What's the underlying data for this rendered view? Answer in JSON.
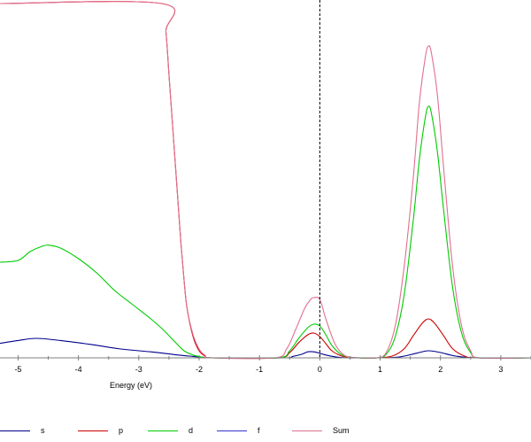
{
  "chart_data": {
    "type": "line",
    "title": "",
    "xlabel": "Energy (eV)",
    "ylabel": "",
    "xlim": [
      -5.3,
      3.5
    ],
    "ylim": [
      0,
      1.0
    ],
    "x_ticks": [
      -5,
      -4,
      -3,
      -2,
      -1,
      0,
      1,
      2,
      3
    ],
    "reference_line_x": 0,
    "grid": false,
    "legend_position": "bottom",
    "series": [
      {
        "name": "s",
        "color": "#00008b",
        "x": [
          -5.3,
          -5.0,
          -4.7,
          -4.3,
          -3.8,
          -3.3,
          -2.8,
          -2.4,
          -2.1,
          -1.9,
          -1.7,
          -0.6,
          -0.45,
          -0.3,
          -0.2,
          -0.1,
          0.0,
          0.1,
          0.25,
          0.45,
          0.6,
          0.95,
          1.3,
          1.6,
          1.8,
          2.0,
          2.25,
          2.6,
          3.5
        ],
        "y": [
          0.041,
          0.049,
          0.055,
          0.049,
          0.038,
          0.025,
          0.017,
          0.009,
          0.004,
          0.001,
          0.0,
          0.0,
          0.004,
          0.01,
          0.017,
          0.017,
          0.013,
          0.008,
          0.003,
          0.0,
          0.0,
          0.0,
          0.002,
          0.013,
          0.02,
          0.015,
          0.005,
          0.0,
          0.0
        ]
      },
      {
        "name": "p",
        "color": "#cc0000",
        "x": [
          -5.3,
          -2.62,
          -2.55,
          -2.5,
          -2.45,
          -2.4,
          -2.35,
          -2.3,
          -2.25,
          -2.2,
          -2.1,
          -2.0,
          -1.9,
          -1.8,
          -0.7,
          -0.5,
          -0.35,
          -0.2,
          -0.1,
          0.0,
          0.1,
          0.2,
          0.35,
          0.5,
          0.65,
          0.95,
          1.2,
          1.4,
          1.55,
          1.7,
          1.8,
          1.9,
          2.05,
          2.2,
          2.4,
          2.6,
          3.5
        ],
        "y": [
          1.0,
          1.0,
          0.92,
          0.8,
          0.68,
          0.56,
          0.44,
          0.32,
          0.22,
          0.14,
          0.06,
          0.02,
          0.005,
          0.0,
          0.0,
          0.015,
          0.043,
          0.065,
          0.07,
          0.06,
          0.04,
          0.02,
          0.006,
          0.001,
          0.0,
          0.0,
          0.005,
          0.026,
          0.063,
          0.098,
          0.11,
          0.098,
          0.063,
          0.026,
          0.005,
          0.0,
          0.0
        ]
      },
      {
        "name": "d",
        "color": "#00cc00",
        "x": [
          -5.3,
          -5.0,
          -4.8,
          -4.6,
          -4.5,
          -4.3,
          -4.0,
          -3.7,
          -3.4,
          -3.1,
          -2.8,
          -2.6,
          -2.4,
          -2.25,
          -2.1,
          -1.95,
          -1.8,
          -0.7,
          -0.5,
          -0.35,
          -0.2,
          -0.1,
          0.0,
          0.1,
          0.2,
          0.35,
          0.5,
          0.65,
          0.95,
          1.1,
          1.25,
          1.4,
          1.55,
          1.65,
          1.75,
          1.8,
          1.85,
          1.95,
          2.05,
          2.2,
          2.35,
          2.5,
          2.65,
          3.5
        ],
        "y": [
          0.27,
          0.275,
          0.3,
          0.315,
          0.318,
          0.31,
          0.28,
          0.24,
          0.19,
          0.15,
          0.11,
          0.08,
          0.045,
          0.02,
          0.008,
          0.002,
          0.0,
          0.0,
          0.02,
          0.055,
          0.085,
          0.095,
          0.09,
          0.065,
          0.035,
          0.01,
          0.002,
          0.0,
          0.0,
          0.01,
          0.06,
          0.18,
          0.39,
          0.56,
          0.68,
          0.71,
          0.69,
          0.58,
          0.42,
          0.2,
          0.07,
          0.015,
          0.0,
          0.0
        ]
      },
      {
        "name": "f",
        "color": "#3333cc",
        "x": [
          -5.3,
          3.5
        ],
        "y": [
          0.0,
          0.0
        ]
      },
      {
        "name": "Sum",
        "color": "#e07090",
        "x": [
          -5.3,
          -2.62,
          -2.55,
          -2.5,
          -2.45,
          -2.4,
          -2.35,
          -2.3,
          -2.25,
          -2.2,
          -2.1,
          -2.0,
          -1.9,
          -1.8,
          -0.75,
          -0.55,
          -0.4,
          -0.25,
          -0.15,
          -0.1,
          0.0,
          0.1,
          0.25,
          0.4,
          0.55,
          0.7,
          0.95,
          1.1,
          1.25,
          1.4,
          1.55,
          1.65,
          1.75,
          1.8,
          1.85,
          1.95,
          2.05,
          2.2,
          2.35,
          2.5,
          2.65,
          3.5
        ],
        "y": [
          1.0,
          1.0,
          0.92,
          0.8,
          0.68,
          0.56,
          0.44,
          0.32,
          0.22,
          0.14,
          0.065,
          0.025,
          0.007,
          0.0,
          0.0,
          0.025,
          0.08,
          0.14,
          0.165,
          0.17,
          0.165,
          0.11,
          0.04,
          0.008,
          0.001,
          0.0,
          0.0,
          0.015,
          0.09,
          0.26,
          0.51,
          0.72,
          0.85,
          0.88,
          0.86,
          0.74,
          0.54,
          0.26,
          0.09,
          0.02,
          0.0,
          0.0
        ]
      }
    ]
  }
}
